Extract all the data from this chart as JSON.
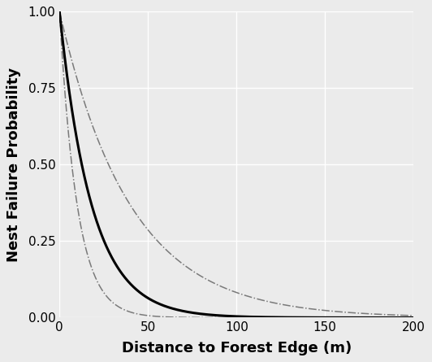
{
  "title": "",
  "xlabel": "Distance to Forest Edge (m)",
  "ylabel": "Nest Failure Probability",
  "xlim": [
    0,
    200
  ],
  "ylim": [
    0,
    1.0
  ],
  "xticks": [
    0,
    50,
    100,
    150,
    200
  ],
  "yticks": [
    0.0,
    0.25,
    0.5,
    0.75,
    1.0
  ],
  "background_color": "#ebebeb",
  "grid_color": "#ffffff",
  "main_line_color": "#000000",
  "ci_line_color": "#666666",
  "main_decay": 0.055,
  "ci_lower_decay": 0.025,
  "ci_upper_decay": 0.1,
  "main_lw": 2.2,
  "ci_lw": 1.1,
  "label_fontsize": 13,
  "tick_fontsize": 11
}
